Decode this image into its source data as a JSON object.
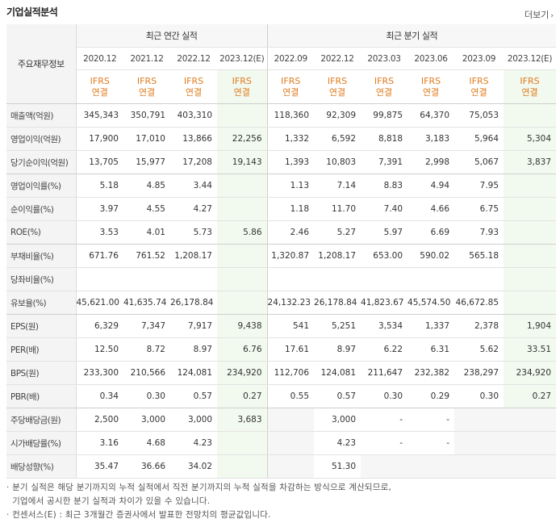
{
  "title": "기업실적분석",
  "more_label": "더보기",
  "header": {
    "row_label": "주요재무정보",
    "annual_title": "최근 연간 실적",
    "quarterly_title": "최근 분기 실적",
    "periods": [
      "2020.12",
      "2021.12",
      "2022.12",
      "2023.12(E)",
      "2022.09",
      "2022.12",
      "2023.03",
      "2023.06",
      "2023.09",
      "2023.12(E)"
    ],
    "basis_top": "IFRS",
    "basis_bottom": "연결"
  },
  "rows": [
    {
      "label": "매출액(억원)",
      "values": [
        "345,343",
        "350,791",
        "403,310",
        "",
        "118,360",
        "92,309",
        "99,875",
        "64,370",
        "75,053",
        ""
      ]
    },
    {
      "label": "영업이익(억원)",
      "values": [
        "17,900",
        "17,010",
        "13,866",
        "22,256",
        "1,332",
        "6,592",
        "8,818",
        "3,183",
        "5,964",
        "5,304"
      ]
    },
    {
      "label": "당기순이익(억원)",
      "values": [
        "13,705",
        "15,977",
        "17,208",
        "19,143",
        "1,393",
        "10,803",
        "7,391",
        "2,998",
        "5,067",
        "3,837"
      ]
    },
    {
      "label": "영업이익률(%)",
      "values": [
        "5.18",
        "4.85",
        "3.44",
        "",
        "1.13",
        "7.14",
        "8.83",
        "4.94",
        "7.95",
        ""
      ]
    },
    {
      "label": "순이익률(%)",
      "values": [
        "3.97",
        "4.55",
        "4.27",
        "",
        "1.18",
        "11.70",
        "7.40",
        "4.66",
        "6.75",
        ""
      ]
    },
    {
      "label": "ROE(%)",
      "values": [
        "3.53",
        "4.01",
        "5.73",
        "5.86",
        "2.46",
        "5.27",
        "5.97",
        "6.69",
        "7.93",
        ""
      ]
    },
    {
      "label": "부채비율(%)",
      "values": [
        "671.76",
        "761.52",
        "1,208.17",
        "",
        "1,320.87",
        "1,208.17",
        "653.00",
        "590.02",
        "565.18",
        ""
      ]
    },
    {
      "label": "당좌비율(%)",
      "values": [
        "",
        "",
        "",
        "",
        "",
        "",
        "",
        "",
        "",
        ""
      ]
    },
    {
      "label": "유보율(%)",
      "values": [
        "45,621.00",
        "41,635.74",
        "26,178.84",
        "",
        "24,132.23",
        "26,178.84",
        "41,823.67",
        "45,574.50",
        "46,672.85",
        ""
      ]
    },
    {
      "label": "EPS(원)",
      "values": [
        "6,329",
        "7,347",
        "7,917",
        "9,438",
        "541",
        "5,251",
        "3,534",
        "1,337",
        "2,378",
        "1,904"
      ]
    },
    {
      "label": "PER(배)",
      "values": [
        "12.50",
        "8.72",
        "8.97",
        "6.76",
        "17.61",
        "8.97",
        "6.22",
        "6.31",
        "5.62",
        "33.51"
      ]
    },
    {
      "label": "BPS(원)",
      "values": [
        "233,300",
        "210,566",
        "124,081",
        "234,920",
        "112,706",
        "124,081",
        "211,647",
        "232,382",
        "238,297",
        "234,920"
      ]
    },
    {
      "label": "PBR(배)",
      "values": [
        "0.34",
        "0.30",
        "0.57",
        "0.27",
        "0.55",
        "0.57",
        "0.30",
        "0.29",
        "0.30",
        "0.27"
      ]
    },
    {
      "label": "주당배당금(원)",
      "values": [
        "2,500",
        "3,000",
        "3,000",
        "3,683",
        "",
        "3,000",
        "-",
        "-",
        "",
        ""
      ]
    },
    {
      "label": "시가배당률(%)",
      "values": [
        "3.16",
        "4.68",
        "4.23",
        "",
        "",
        "4.23",
        "-",
        "-",
        "",
        ""
      ]
    },
    {
      "label": "배당성향(%)",
      "values": [
        "35.47",
        "36.66",
        "34.02",
        "",
        "",
        "51.30",
        "",
        "",
        "",
        ""
      ]
    }
  ],
  "notes": [
    "· 분기 실적은 해당 분기까지의 누적 실적에서 직전 분기까지의 누적 실적을 차감하는 방식으로 계산되므로,",
    "  기업에서 공시한 분기 실적과 차이가 있을 수 있습니다.",
    "· 컨센서스(E) : 최근 3개월간 증권사에서 발표한 전망치의 평균값입니다."
  ]
}
